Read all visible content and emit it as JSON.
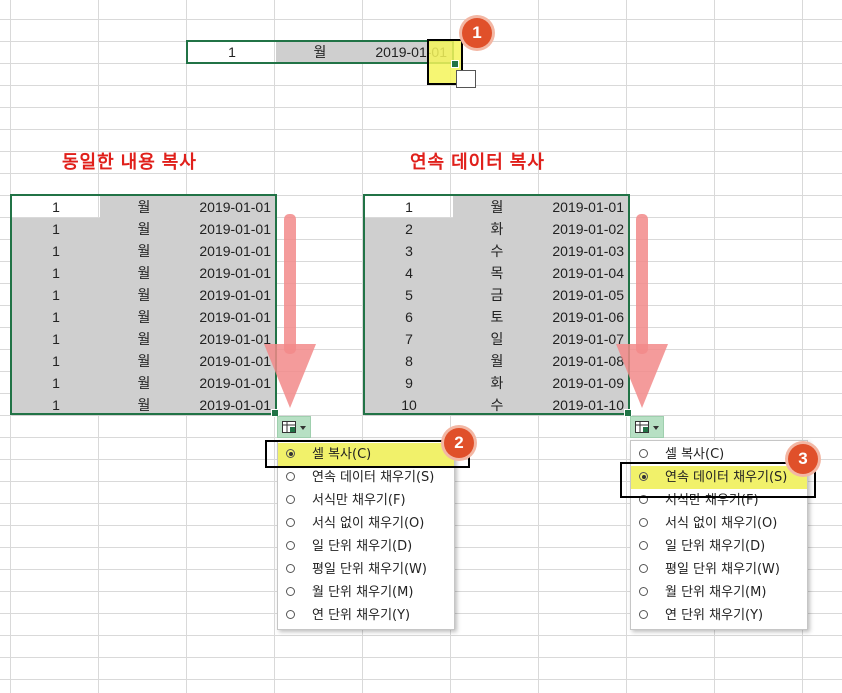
{
  "top_row": {
    "num": "1",
    "day": "월",
    "date": "2019-01-01"
  },
  "left_title": "동일한 내용 복사",
  "right_title": "연속 데이터 복사",
  "left_rows": [
    {
      "num": "1",
      "day": "월",
      "date": "2019-01-01"
    },
    {
      "num": "1",
      "day": "월",
      "date": "2019-01-01"
    },
    {
      "num": "1",
      "day": "월",
      "date": "2019-01-01"
    },
    {
      "num": "1",
      "day": "월",
      "date": "2019-01-01"
    },
    {
      "num": "1",
      "day": "월",
      "date": "2019-01-01"
    },
    {
      "num": "1",
      "day": "월",
      "date": "2019-01-01"
    },
    {
      "num": "1",
      "day": "월",
      "date": "2019-01-01"
    },
    {
      "num": "1",
      "day": "월",
      "date": "2019-01-01"
    },
    {
      "num": "1",
      "day": "월",
      "date": "2019-01-01"
    },
    {
      "num": "1",
      "day": "월",
      "date": "2019-01-01"
    }
  ],
  "right_rows": [
    {
      "num": "1",
      "day": "월",
      "date": "2019-01-01"
    },
    {
      "num": "2",
      "day": "화",
      "date": "2019-01-02"
    },
    {
      "num": "3",
      "day": "수",
      "date": "2019-01-03"
    },
    {
      "num": "4",
      "day": "목",
      "date": "2019-01-04"
    },
    {
      "num": "5",
      "day": "금",
      "date": "2019-01-05"
    },
    {
      "num": "6",
      "day": "토",
      "date": "2019-01-06"
    },
    {
      "num": "7",
      "day": "일",
      "date": "2019-01-07"
    },
    {
      "num": "8",
      "day": "월",
      "date": "2019-01-08"
    },
    {
      "num": "9",
      "day": "화",
      "date": "2019-01-09"
    },
    {
      "num": "10",
      "day": "수",
      "date": "2019-01-10"
    }
  ],
  "menu_items": [
    {
      "label": "셀 복사(C)"
    },
    {
      "label": "연속 데이터 채우기(S)"
    },
    {
      "label": "서식만 채우기(F)"
    },
    {
      "label": "서식 없이 채우기(O)"
    },
    {
      "label": "일 단위 채우기(D)"
    },
    {
      "label": "평일 단위 채우기(W)"
    },
    {
      "label": "월 단위 채우기(M)"
    },
    {
      "label": "연 단위 채우기(Y)"
    }
  ],
  "left_menu_selected": 0,
  "right_menu_selected": 1,
  "badges": [
    "1",
    "2",
    "3"
  ],
  "colors": {
    "accent": "#217346",
    "title_red": "#e0201b",
    "highlight": "#f5f55a",
    "badge": "#e0502a",
    "arrow": "#f28a8a"
  }
}
